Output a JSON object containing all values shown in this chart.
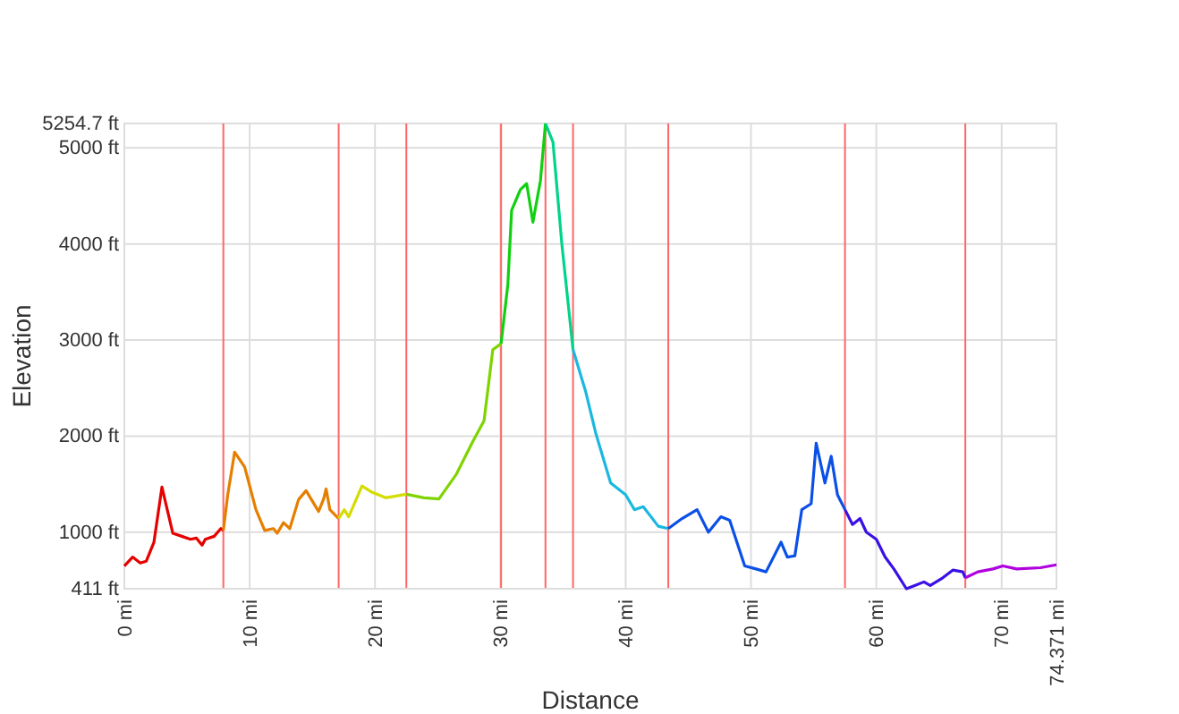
{
  "chart_data": {
    "type": "line",
    "xlabel": "Distance",
    "ylabel": "Elevation",
    "xlim": [
      0,
      74.371
    ],
    "ylim": [
      411,
      5254.7
    ],
    "xticks": [
      {
        "value": 0,
        "label": "0 mi"
      },
      {
        "value": 10,
        "label": "10 mi"
      },
      {
        "value": 20,
        "label": "20 mi"
      },
      {
        "value": 30,
        "label": "30 mi"
      },
      {
        "value": 40,
        "label": "40 mi"
      },
      {
        "value": 50,
        "label": "50 mi"
      },
      {
        "value": 60,
        "label": "60 mi"
      },
      {
        "value": 70,
        "label": "70 mi"
      },
      {
        "value": 74.371,
        "label": "74.371 mi"
      }
    ],
    "yticks": [
      {
        "value": 411,
        "label": "411 ft"
      },
      {
        "value": 1000,
        "label": "1000 ft"
      },
      {
        "value": 2000,
        "label": "2000 ft"
      },
      {
        "value": 3000,
        "label": "3000 ft"
      },
      {
        "value": 4000,
        "label": "4000 ft"
      },
      {
        "value": 5000,
        "label": "5000 ft"
      },
      {
        "value": 5254.7,
        "label": "5254.7 ft"
      }
    ],
    "grid": true,
    "marker": "none",
    "line_style": "solid",
    "series": [
      {
        "color": "#e60000",
        "x": [
          0,
          0.66,
          1.27,
          1.75,
          2.36,
          3.0,
          3.87,
          4.58,
          5.28,
          5.75,
          6.2,
          6.46,
          7.17,
          7.7,
          7.9
        ],
        "values": [
          648,
          741,
          679,
          698,
          895,
          1469,
          988,
          957,
          926,
          938,
          864,
          926,
          957,
          1037,
          1018
        ]
      },
      {
        "color": "#e67e00",
        "x": [
          7.9,
          8.25,
          8.8,
          9.6,
          10.5,
          11.2,
          11.9,
          12.2,
          12.7,
          13.2,
          13.9,
          14.5,
          15.5,
          15.9,
          16.1,
          16.4,
          17.1
        ],
        "values": [
          1018,
          1389,
          1833,
          1679,
          1234,
          1018,
          1037,
          988,
          1099,
          1037,
          1339,
          1432,
          1216,
          1346,
          1450,
          1234,
          1142
        ]
      },
      {
        "color": "#d4dc00",
        "x": [
          17.1,
          17.55,
          17.9,
          18.96,
          19.7,
          20.85,
          22.5
        ],
        "values": [
          1142,
          1234,
          1160,
          1481,
          1420,
          1358,
          1395
        ]
      },
      {
        "color": "#7fd400",
        "x": [
          22.5,
          23.9,
          25.1,
          26.5,
          27.8,
          28.7,
          29.4,
          30.06
        ],
        "values": [
          1395,
          1358,
          1346,
          1605,
          1944,
          2160,
          2900,
          2962
        ]
      },
      {
        "color": "#10d010",
        "x": [
          30.06,
          30.6,
          30.9,
          31.6,
          32.1,
          32.6,
          33.2,
          33.6
        ],
        "values": [
          2962,
          3579,
          4350,
          4566,
          4628,
          4227,
          4659,
          5254.7
        ]
      },
      {
        "color": "#00d48a",
        "x": [
          33.6,
          34.2,
          34.9,
          35.8
        ],
        "values": [
          5254.7,
          5060,
          4011,
          2900
        ]
      },
      {
        "color": "#1ab8e0",
        "x": [
          35.8,
          36.8,
          37.6,
          38.8,
          40.0,
          40.7,
          41.4,
          42.6,
          43.4
        ],
        "values": [
          2900,
          2468,
          2037,
          1512,
          1389,
          1234,
          1265,
          1062,
          1037
        ]
      },
      {
        "color": "#0a50e6",
        "x": [
          43.4,
          44.5,
          45.7,
          46.6,
          47.6,
          48.3,
          49.5,
          50.4,
          51.2,
          52.4,
          52.9,
          53.5,
          54.05,
          54.8,
          55.2,
          55.9,
          56.4,
          56.9,
          57.5
        ],
        "values": [
          1037,
          1142,
          1234,
          1000,
          1160,
          1123,
          648,
          617,
          587,
          895,
          741,
          753,
          1234,
          1296,
          1926,
          1512,
          1790,
          1389,
          1234
        ]
      },
      {
        "color": "#3a10e6",
        "x": [
          57.5,
          58.1,
          58.7,
          59.2,
          60.0,
          60.7,
          61.4,
          62.4,
          63.1,
          63.8,
          64.3,
          65.3,
          66.1,
          66.9,
          67.1
        ],
        "values": [
          1234,
          1080,
          1142,
          1000,
          926,
          741,
          617,
          411,
          445,
          482,
          445,
          525,
          605,
          587,
          525
        ]
      },
      {
        "color": "#b000e0",
        "x": [
          67.1,
          68.1,
          69.3,
          70.1,
          71.2,
          73.1,
          74.371
        ],
        "values": [
          525,
          587,
          617,
          648,
          617,
          630,
          660
        ]
      }
    ],
    "ref_lines": [
      {
        "axis": "x",
        "value": 7.9,
        "color": "#ff6666"
      },
      {
        "axis": "x",
        "value": 17.1,
        "color": "#ff6666"
      },
      {
        "axis": "x",
        "value": 22.5,
        "color": "#ff6666"
      },
      {
        "axis": "x",
        "value": 30.06,
        "color": "#ff6666"
      },
      {
        "axis": "x",
        "value": 33.6,
        "color": "#ff6666"
      },
      {
        "axis": "x",
        "value": 35.8,
        "color": "#ff6666"
      },
      {
        "axis": "x",
        "value": 43.4,
        "color": "#ff6666"
      },
      {
        "axis": "x",
        "value": 57.5,
        "color": "#ff6666"
      },
      {
        "axis": "x",
        "value": 67.1,
        "color": "#ff6666"
      }
    ]
  }
}
